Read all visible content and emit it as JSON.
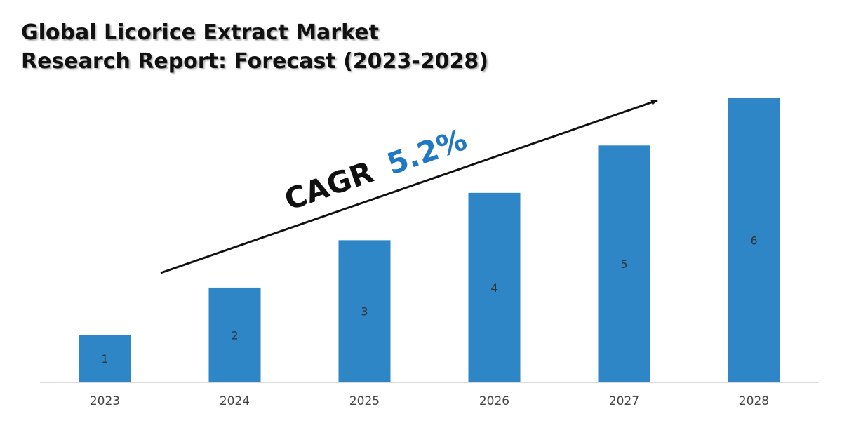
{
  "title": {
    "line1": "Global Licorice Extract Market",
    "line2": "Research Report: Forecast (2023-2028)"
  },
  "chart_data": {
    "type": "bar",
    "categories": [
      "2023",
      "2024",
      "2025",
      "2026",
      "2027",
      "2028"
    ],
    "values": [
      1,
      2,
      3,
      4,
      5,
      6
    ],
    "data_labels": [
      "1",
      "2",
      "3",
      "4",
      "5",
      "6"
    ],
    "ylim": [
      0,
      6.1
    ],
    "grid": false,
    "legend": "none",
    "bar_color": "#2e86c6",
    "annotation": {
      "prefix": "CAGR",
      "value": "5.2%",
      "value_color": "#1f78c1",
      "text_color": "#111111"
    }
  }
}
